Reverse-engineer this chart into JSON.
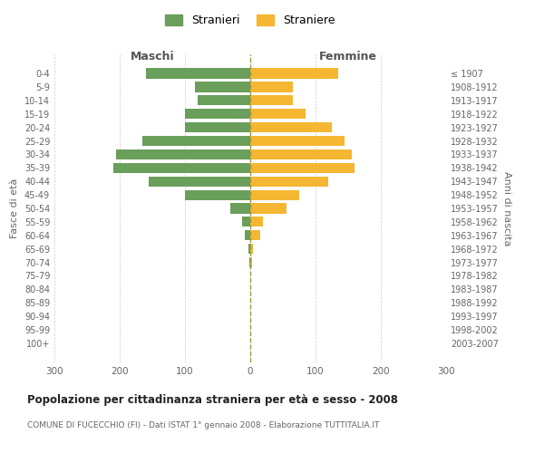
{
  "age_groups": [
    "0-4",
    "5-9",
    "10-14",
    "15-19",
    "20-24",
    "25-29",
    "30-34",
    "35-39",
    "40-44",
    "45-49",
    "50-54",
    "55-59",
    "60-64",
    "65-69",
    "70-74",
    "75-79",
    "80-84",
    "85-89",
    "90-94",
    "95-99",
    "100+"
  ],
  "birth_years": [
    "2003-2007",
    "1998-2002",
    "1993-1997",
    "1988-1992",
    "1983-1987",
    "1978-1982",
    "1973-1977",
    "1968-1972",
    "1963-1967",
    "1958-1962",
    "1953-1957",
    "1948-1952",
    "1943-1947",
    "1938-1942",
    "1933-1937",
    "1928-1932",
    "1923-1927",
    "1918-1922",
    "1913-1917",
    "1908-1912",
    "≤ 1907"
  ],
  "maschi": [
    160,
    85,
    80,
    100,
    100,
    165,
    205,
    210,
    155,
    100,
    30,
    12,
    8,
    3,
    2,
    0,
    0,
    0,
    0,
    0,
    0
  ],
  "femmine": [
    135,
    65,
    65,
    85,
    125,
    145,
    155,
    160,
    120,
    75,
    55,
    20,
    15,
    4,
    3,
    0,
    0,
    0,
    0,
    0,
    0
  ],
  "color_maschi": "#6a9e5b",
  "color_femmine": "#f5b731",
  "title": "Popolazione per cittadinanza straniera per età e sesso - 2008",
  "subtitle": "COMUNE DI FUCECCHIO (FI) - Dati ISTAT 1° gennaio 2008 - Elaborazione TUTTITALIA.IT",
  "xlabel_left": "Maschi",
  "xlabel_right": "Femmine",
  "ylabel_left": "Fasce di età",
  "ylabel_right": "Anni di nascita",
  "legend_stranieri": "Stranieri",
  "legend_straniere": "Straniere",
  "xlim": 300,
  "background_color": "#ffffff",
  "grid_color": "#cccccc"
}
